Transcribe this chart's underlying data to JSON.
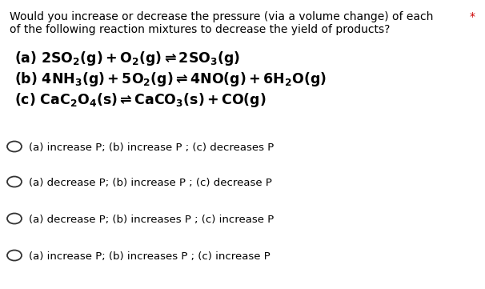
{
  "background_color": "#ffffff",
  "header_line1": "Would you increase or decrease the pressure (via a volume change) of each",
  "header_line2": "of the following reaction mixtures to decrease the yield of products?",
  "star": "*",
  "reaction_a": "(a) $\\mathbf{2SO_2}$$(g)$ $\\mathbf{+ O_2(g) \\rightleftharpoons 2SO_3(g)}$",
  "reaction_b": "(b) $\\mathbf{4NH_3(g) + 5O_2(g) \\rightleftharpoons 4NO(g) + 6H_2O(g)}$",
  "reaction_c": "(c) $\\mathbf{CaC_2O_4(s) \\rightleftharpoons CaCO_3(s) + CO(g)}$",
  "options": [
    "(a) increase P; (b) increase P ; (c) decreases P",
    "(a) decrease P; (b) increase P ; (c) decrease P",
    "(a) decrease P; (b) increases P ; (c) increase P",
    "(a) increase P; (b) increases P ; (c) increase P"
  ],
  "header_fontsize": 10.0,
  "reaction_fontsize": 12.5,
  "option_fontsize": 9.5,
  "text_color": "#000000",
  "star_color": "#cc0000"
}
